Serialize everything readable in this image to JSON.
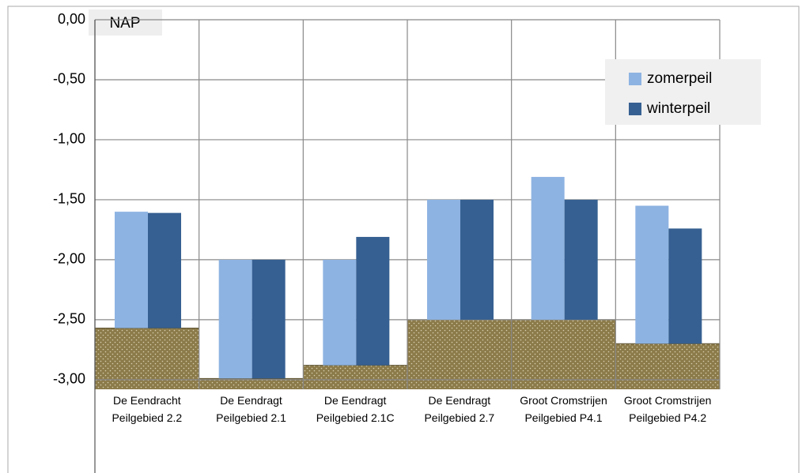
{
  "chart_data": {
    "type": "bar",
    "axis_label": "NAP",
    "categories": [
      "De Eendracht Peilgebied 2.2",
      "De Eendragt Peilgebied 2.1",
      "De Eendragt Peilgebied 2.1C",
      "De Eendragt Peilgebied 2.7",
      "Groot Cromstrijen Peilgebied P4.1",
      "Groot Cromstrijen Peilgebied P4.2"
    ],
    "series": [
      {
        "name": "zomerpeil",
        "color": "#8db3e2",
        "values": [
          -1.6,
          -2.0,
          -2.0,
          -1.5,
          -1.31,
          -1.55
        ]
      },
      {
        "name": "winterpeil",
        "color": "#366092",
        "values": [
          -1.61,
          -2.0,
          -1.81,
          -1.5,
          -1.5,
          -1.74
        ]
      }
    ],
    "ground": {
      "color": "#8c7b4a",
      "values": [
        -2.57,
        -2.99,
        -2.88,
        -2.5,
        -2.5,
        -2.7
      ]
    },
    "ylim": [
      -3.08,
      0
    ],
    "yticks": [
      {
        "value": 0,
        "label": "0,00"
      },
      {
        "value": -0.5,
        "label": "-0,50"
      },
      {
        "value": -1,
        "label": "-1,00"
      },
      {
        "value": -1.5,
        "label": "-1,50"
      },
      {
        "value": -2,
        "label": "-2,00"
      },
      {
        "value": -2.5,
        "label": "-2,50"
      },
      {
        "value": -3,
        "label": "-3,00"
      }
    ],
    "grid": true,
    "legend": "top-right"
  }
}
